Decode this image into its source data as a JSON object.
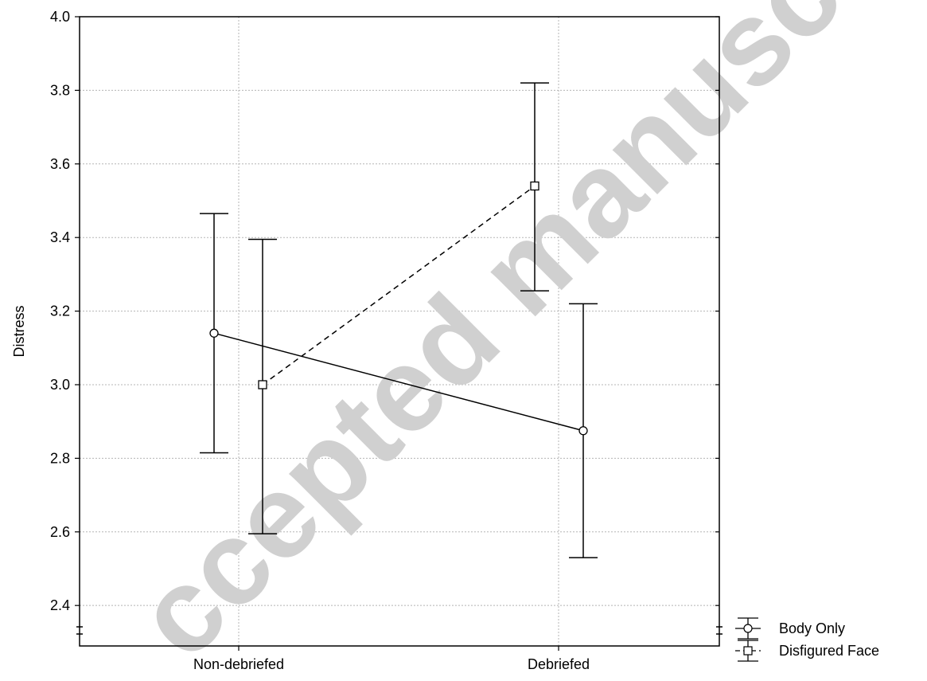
{
  "chart_data": {
    "type": "line",
    "xlabel": "",
    "ylabel": "Distress",
    "categories": [
      "Non-debriefed",
      "Debriefed"
    ],
    "ylim": [
      2.29,
      4.0
    ],
    "yticks": [
      "2.4",
      "2.6",
      "2.8",
      "3.0",
      "3.2",
      "3.4",
      "3.6",
      "3.8",
      "4.0"
    ],
    "grid": true,
    "legend_position": "bottom-right outside",
    "series": [
      {
        "name": "Body Only",
        "marker": "circle",
        "line_style": "solid",
        "values": [
          3.14,
          2.875
        ],
        "error_low": [
          2.815,
          2.53
        ],
        "error_high": [
          3.465,
          3.22
        ]
      },
      {
        "name": "Disfigured Face",
        "marker": "square",
        "line_style": "dashed",
        "values": [
          3.0,
          3.54
        ],
        "error_low": [
          2.595,
          3.255
        ],
        "error_high": [
          3.395,
          3.82
        ]
      }
    ]
  },
  "watermark": "ccepted manuscript"
}
